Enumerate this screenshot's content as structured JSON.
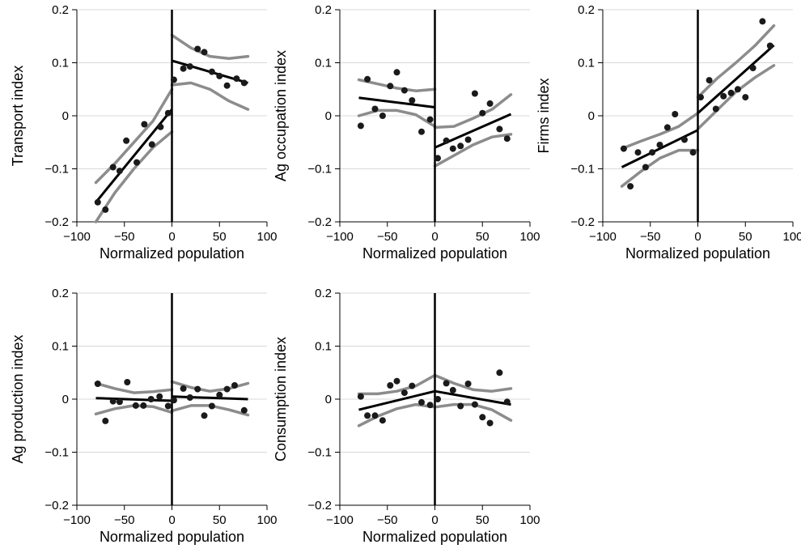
{
  "chart_data": [
    {
      "type": "scatter",
      "xlabel": "Normalized population",
      "ylabel": "Transport index",
      "xlim": [
        -100,
        100
      ],
      "ylim": [
        -0.2,
        0.2
      ],
      "xticks": [
        -100,
        -50,
        0,
        50,
        100
      ],
      "xtick_labels": [
        "−100",
        "−50",
        "0",
        "50",
        "100"
      ],
      "yticks": [
        -0.2,
        -0.1,
        0,
        0.1,
        0.2
      ],
      "ytick_labels": [
        "−0.2",
        "−0.1",
        "0",
        "0.1",
        "0.2"
      ],
      "grid": "horizontal",
      "cutoff": 0,
      "points": [
        [
          -78,
          -0.163
        ],
        [
          -70,
          -0.177
        ],
        [
          -62,
          -0.097
        ],
        [
          -55,
          -0.104
        ],
        [
          -48,
          -0.047
        ],
        [
          -37,
          -0.088
        ],
        [
          -29,
          -0.016
        ],
        [
          -21,
          -0.054
        ],
        [
          -12,
          -0.021
        ],
        [
          -4,
          0.005
        ],
        [
          2,
          0.068
        ],
        [
          12,
          0.089
        ],
        [
          19,
          0.093
        ],
        [
          27,
          0.126
        ],
        [
          34,
          0.12
        ],
        [
          42,
          0.083
        ],
        [
          50,
          0.075
        ],
        [
          58,
          0.057
        ],
        [
          68,
          0.07
        ],
        [
          76,
          0.062
        ]
      ],
      "fit_left": [
        [
          -80,
          -0.163
        ],
        [
          0,
          0.012
        ]
      ],
      "fit_right": [
        [
          0,
          0.104
        ],
        [
          80,
          0.062
        ]
      ],
      "ci_left_upper": [
        [
          -80,
          -0.126
        ],
        [
          -60,
          -0.09
        ],
        [
          -40,
          -0.05
        ],
        [
          -20,
          -0.01
        ],
        [
          0,
          0.05
        ]
      ],
      "ci_left_lower": [
        [
          -80,
          -0.2
        ],
        [
          -60,
          -0.145
        ],
        [
          -40,
          -0.1
        ],
        [
          -20,
          -0.06
        ],
        [
          0,
          -0.03
        ]
      ],
      "ci_right_upper": [
        [
          0,
          0.152
        ],
        [
          20,
          0.128
        ],
        [
          40,
          0.112
        ],
        [
          60,
          0.108
        ],
        [
          80,
          0.112
        ]
      ],
      "ci_right_lower": [
        [
          0,
          0.058
        ],
        [
          20,
          0.062
        ],
        [
          40,
          0.05
        ],
        [
          60,
          0.028
        ],
        [
          80,
          0.012
        ]
      ]
    },
    {
      "type": "scatter",
      "xlabel": "Normalized population",
      "ylabel": "Ag occupation index",
      "xlim": [
        -100,
        100
      ],
      "ylim": [
        -0.2,
        0.2
      ],
      "xticks": [
        -100,
        -50,
        0,
        50,
        100
      ],
      "xtick_labels": [
        "−100",
        "−50",
        "0",
        "50",
        "100"
      ],
      "yticks": [
        -0.2,
        -0.1,
        0,
        0.1,
        0.2
      ],
      "ytick_labels": [
        "−0.2",
        "−0.1",
        "0",
        "0.1",
        "0.2"
      ],
      "grid": "horizontal",
      "cutoff": 0,
      "points": [
        [
          -78,
          -0.019
        ],
        [
          -71,
          0.069
        ],
        [
          -63,
          0.013
        ],
        [
          -55,
          0
        ],
        [
          -47,
          0.056
        ],
        [
          -40,
          0.082
        ],
        [
          -32,
          0.048
        ],
        [
          -24,
          0.029
        ],
        [
          -14,
          -0.03
        ],
        [
          -5,
          -0.007
        ],
        [
          3,
          -0.08
        ],
        [
          12,
          -0.047
        ],
        [
          19,
          -0.062
        ],
        [
          27,
          -0.057
        ],
        [
          35,
          -0.045
        ],
        [
          42,
          0.042
        ],
        [
          50,
          0.005
        ],
        [
          58,
          0.023
        ],
        [
          68,
          -0.025
        ],
        [
          76,
          -0.043
        ]
      ],
      "fit_left": [
        [
          -80,
          0.034
        ],
        [
          0,
          0.016
        ]
      ],
      "fit_right": [
        [
          0,
          -0.06
        ],
        [
          80,
          0.003
        ]
      ],
      "ci_left_upper": [
        [
          -80,
          0.068
        ],
        [
          -60,
          0.06
        ],
        [
          -40,
          0.052
        ],
        [
          -20,
          0.047
        ],
        [
          0,
          0.05
        ]
      ],
      "ci_left_lower": [
        [
          -80,
          0
        ],
        [
          -60,
          0.01
        ],
        [
          -40,
          0.01
        ],
        [
          -20,
          0.002
        ],
        [
          0,
          -0.02
        ]
      ],
      "ci_right_upper": [
        [
          0,
          -0.022
        ],
        [
          20,
          -0.02
        ],
        [
          40,
          -0.005
        ],
        [
          60,
          0.012
        ],
        [
          80,
          0.04
        ]
      ],
      "ci_right_lower": [
        [
          0,
          -0.095
        ],
        [
          20,
          -0.075
        ],
        [
          40,
          -0.055
        ],
        [
          60,
          -0.04
        ],
        [
          80,
          -0.035
        ]
      ]
    },
    {
      "type": "scatter",
      "xlabel": "Normalized population",
      "ylabel": "Firms index",
      "xlim": [
        -100,
        100
      ],
      "ylim": [
        -0.2,
        0.2
      ],
      "xticks": [
        -100,
        -50,
        0,
        50,
        100
      ],
      "xtick_labels": [
        "−100",
        "−50",
        "0",
        "50",
        "100"
      ],
      "yticks": [
        -0.2,
        -0.1,
        0,
        0.1,
        0.2
      ],
      "ytick_labels": [
        "−0.2",
        "−0.1",
        "0",
        "0.1",
        "0.2"
      ],
      "grid": "horizontal",
      "cutoff": 0,
      "points": [
        [
          -78,
          -0.062
        ],
        [
          -71,
          -0.133
        ],
        [
          -63,
          -0.069
        ],
        [
          -55,
          -0.097
        ],
        [
          -48,
          -0.069
        ],
        [
          -40,
          -0.055
        ],
        [
          -32,
          -0.022
        ],
        [
          -24,
          0.003
        ],
        [
          -14,
          -0.045
        ],
        [
          -5,
          -0.069
        ],
        [
          3,
          0.035
        ],
        [
          12,
          0.067
        ],
        [
          19,
          0.013
        ],
        [
          27,
          0.037
        ],
        [
          35,
          0.043
        ],
        [
          42,
          0.05
        ],
        [
          50,
          0.035
        ],
        [
          58,
          0.09
        ],
        [
          68,
          0.178
        ],
        [
          76,
          0.132
        ]
      ],
      "fit_left": [
        [
          -80,
          -0.097
        ],
        [
          0,
          -0.027
        ]
      ],
      "fit_right": [
        [
          0,
          0.005
        ],
        [
          80,
          0.133
        ]
      ],
      "ci_left_upper": [
        [
          -80,
          -0.062
        ],
        [
          -60,
          -0.048
        ],
        [
          -40,
          -0.035
        ],
        [
          -20,
          -0.02
        ],
        [
          0,
          0.005
        ]
      ],
      "ci_left_lower": [
        [
          -80,
          -0.133
        ],
        [
          -60,
          -0.105
        ],
        [
          -40,
          -0.08
        ],
        [
          -20,
          -0.065
        ],
        [
          0,
          -0.065
        ]
      ],
      "ci_right_upper": [
        [
          0,
          0.035
        ],
        [
          20,
          0.07
        ],
        [
          40,
          0.1
        ],
        [
          60,
          0.132
        ],
        [
          80,
          0.17
        ]
      ],
      "ci_right_lower": [
        [
          0,
          -0.025
        ],
        [
          20,
          0.01
        ],
        [
          40,
          0.045
        ],
        [
          60,
          0.072
        ],
        [
          80,
          0.095
        ]
      ]
    },
    {
      "type": "scatter",
      "xlabel": "Normalized population",
      "ylabel": "Ag production index",
      "xlim": [
        -100,
        100
      ],
      "ylim": [
        -0.2,
        0.2
      ],
      "xticks": [
        -100,
        -50,
        0,
        50,
        100
      ],
      "xtick_labels": [
        "−100",
        "−50",
        "0",
        "50",
        "100"
      ],
      "yticks": [
        -0.2,
        -0.1,
        0,
        0.1,
        0.2
      ],
      "ytick_labels": [
        "−0.2",
        "−0.1",
        "0",
        "0.1",
        "0.2"
      ],
      "grid": "horizontal",
      "cutoff": 0,
      "points": [
        [
          -78,
          0.029
        ],
        [
          -70,
          -0.041
        ],
        [
          -62,
          -0.004
        ],
        [
          -55,
          -0.005
        ],
        [
          -47,
          0.032
        ],
        [
          -38,
          -0.012
        ],
        [
          -30,
          -0.012
        ],
        [
          -22,
          0
        ],
        [
          -13,
          0.005
        ],
        [
          -4,
          -0.013
        ],
        [
          2,
          -0.002
        ],
        [
          12,
          0.02
        ],
        [
          19,
          0.003
        ],
        [
          27,
          0.019
        ],
        [
          34,
          -0.031
        ],
        [
          42,
          -0.013
        ],
        [
          50,
          0.008
        ],
        [
          58,
          0.019
        ],
        [
          66,
          0.026
        ],
        [
          76,
          -0.021
        ]
      ],
      "fit_left": [
        [
          -80,
          0.002
        ],
        [
          0,
          -0.003
        ]
      ],
      "fit_right": [
        [
          0,
          0.005
        ],
        [
          80,
          0
        ]
      ],
      "ci_left_upper": [
        [
          -80,
          0.03
        ],
        [
          -60,
          0.02
        ],
        [
          -40,
          0.012
        ],
        [
          -20,
          0.014
        ],
        [
          0,
          0.018
        ]
      ],
      "ci_left_lower": [
        [
          -80,
          -0.028
        ],
        [
          -60,
          -0.018
        ],
        [
          -40,
          -0.012
        ],
        [
          -20,
          -0.014
        ],
        [
          0,
          -0.025
        ]
      ],
      "ci_right_upper": [
        [
          0,
          0.033
        ],
        [
          20,
          0.022
        ],
        [
          40,
          0.015
        ],
        [
          60,
          0.02
        ],
        [
          80,
          0.03
        ]
      ],
      "ci_right_lower": [
        [
          0,
          -0.022
        ],
        [
          20,
          -0.012
        ],
        [
          40,
          -0.012
        ],
        [
          60,
          -0.02
        ],
        [
          80,
          -0.03
        ]
      ]
    },
    {
      "type": "scatter",
      "xlabel": "Normalized population",
      "ylabel": "Consumption index",
      "xlim": [
        -100,
        100
      ],
      "ylim": [
        -0.2,
        0.2
      ],
      "xticks": [
        -100,
        -50,
        0,
        50,
        100
      ],
      "xtick_labels": [
        "−100",
        "−50",
        "0",
        "50",
        "100"
      ],
      "yticks": [
        -0.2,
        -0.1,
        0,
        0.1,
        0.2
      ],
      "ytick_labels": [
        "−0.2",
        "−0.1",
        "0",
        "0.1",
        "0.2"
      ],
      "grid": "horizontal",
      "cutoff": 0,
      "points": [
        [
          -78,
          0.005
        ],
        [
          -71,
          -0.031
        ],
        [
          -63,
          -0.031
        ],
        [
          -55,
          -0.04
        ],
        [
          -47,
          0.026
        ],
        [
          -40,
          0.034
        ],
        [
          -32,
          0.012
        ],
        [
          -24,
          0.025
        ],
        [
          -14,
          -0.006
        ],
        [
          -5,
          -0.011
        ],
        [
          3,
          0
        ],
        [
          12,
          0.03
        ],
        [
          19,
          0.017
        ],
        [
          27,
          -0.013
        ],
        [
          35,
          0.029
        ],
        [
          42,
          -0.01
        ],
        [
          50,
          -0.034
        ],
        [
          58,
          -0.045
        ],
        [
          68,
          0.05
        ],
        [
          76,
          -0.005
        ]
      ],
      "fit_left": [
        [
          -80,
          -0.02
        ],
        [
          0,
          0.015
        ]
      ],
      "fit_right": [
        [
          0,
          0.015
        ],
        [
          80,
          -0.01
        ]
      ],
      "ci_left_upper": [
        [
          -80,
          0.01
        ],
        [
          -60,
          0.01
        ],
        [
          -40,
          0.015
        ],
        [
          -20,
          0.025
        ],
        [
          0,
          0.045
        ]
      ],
      "ci_left_lower": [
        [
          -80,
          -0.05
        ],
        [
          -60,
          -0.032
        ],
        [
          -40,
          -0.018
        ],
        [
          -20,
          -0.01
        ],
        [
          0,
          -0.015
        ]
      ],
      "ci_right_upper": [
        [
          0,
          0.045
        ],
        [
          20,
          0.03
        ],
        [
          40,
          0.018
        ],
        [
          60,
          0.015
        ],
        [
          80,
          0.02
        ]
      ],
      "ci_right_lower": [
        [
          0,
          -0.015
        ],
        [
          20,
          -0.01
        ],
        [
          40,
          -0.01
        ],
        [
          60,
          -0.02
        ],
        [
          80,
          -0.04
        ]
      ]
    }
  ]
}
